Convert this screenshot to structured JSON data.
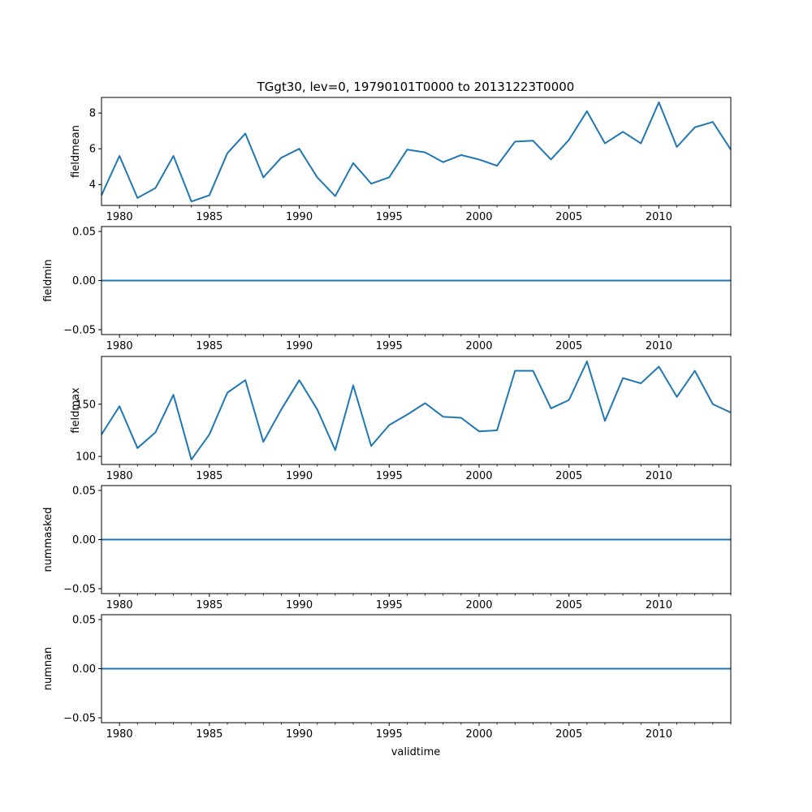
{
  "title": "TGgt30, lev=0, 19790101T0000 to 20131223T0000",
  "xlabel": "validtime",
  "colors": {
    "line": "#1f77b4",
    "axis": "#000000",
    "background": "#ffffff"
  },
  "chart_data": [
    {
      "type": "line",
      "ylabel": "fieldmean",
      "x": [
        1979,
        1980,
        1981,
        1982,
        1983,
        1984,
        1985,
        1986,
        1987,
        1988,
        1989,
        1990,
        1991,
        1992,
        1993,
        1994,
        1995,
        1996,
        1997,
        1998,
        1999,
        2000,
        2001,
        2002,
        2003,
        2004,
        2005,
        2006,
        2007,
        2008,
        2009,
        2010,
        2011,
        2012,
        2013,
        2014
      ],
      "values": [
        3.4,
        5.6,
        3.25,
        3.8,
        5.6,
        3.05,
        3.4,
        5.75,
        6.85,
        4.4,
        5.5,
        6.0,
        4.4,
        3.35,
        5.2,
        4.05,
        4.4,
        5.95,
        5.8,
        5.25,
        5.65,
        5.4,
        5.05,
        6.4,
        6.45,
        5.4,
        6.5,
        8.1,
        6.3,
        6.95,
        6.3,
        8.6,
        6.1,
        7.2,
        7.5,
        5.95
      ],
      "xlim": [
        1979,
        2014
      ],
      "ylim": [
        2.83,
        8.87
      ],
      "yticks": [
        4,
        6,
        8
      ],
      "ytick_labels": [
        "4",
        "6",
        "8"
      ]
    },
    {
      "type": "line",
      "ylabel": "fieldmin",
      "x": [
        1979,
        1980,
        1981,
        1982,
        1983,
        1984,
        1985,
        1986,
        1987,
        1988,
        1989,
        1990,
        1991,
        1992,
        1993,
        1994,
        1995,
        1996,
        1997,
        1998,
        1999,
        2000,
        2001,
        2002,
        2003,
        2004,
        2005,
        2006,
        2007,
        2008,
        2009,
        2010,
        2011,
        2012,
        2013,
        2014
      ],
      "values": [
        0,
        0,
        0,
        0,
        0,
        0,
        0,
        0,
        0,
        0,
        0,
        0,
        0,
        0,
        0,
        0,
        0,
        0,
        0,
        0,
        0,
        0,
        0,
        0,
        0,
        0,
        0,
        0,
        0,
        0,
        0,
        0,
        0,
        0,
        0,
        0
      ],
      "xlim": [
        1979,
        2014
      ],
      "ylim": [
        -0.055,
        0.055
      ],
      "yticks": [
        -0.05,
        0.0,
        0.05
      ],
      "ytick_labels": [
        "−0.05",
        "0.00",
        "0.05"
      ]
    },
    {
      "type": "line",
      "ylabel": "fieldmax",
      "x": [
        1979,
        1980,
        1981,
        1982,
        1983,
        1984,
        1985,
        1986,
        1987,
        1988,
        1989,
        1990,
        1991,
        1992,
        1993,
        1994,
        1995,
        1996,
        1997,
        1998,
        1999,
        2000,
        2001,
        2002,
        2003,
        2004,
        2005,
        2006,
        2007,
        2008,
        2009,
        2010,
        2011,
        2012,
        2013,
        2014
      ],
      "values": [
        121,
        148,
        108,
        123,
        159,
        97,
        121,
        161,
        173,
        114,
        145,
        173,
        145,
        106,
        168,
        110,
        130,
        140,
        151,
        138,
        137,
        124,
        125,
        182,
        182,
        146,
        154,
        191,
        134,
        175,
        170,
        186,
        157,
        182,
        150,
        142
      ],
      "xlim": [
        1979,
        2014
      ],
      "ylim": [
        92.3,
        195.7
      ],
      "yticks": [
        100,
        150
      ],
      "ytick_labels": [
        "100",
        "150"
      ]
    },
    {
      "type": "line",
      "ylabel": "nummasked",
      "x": [
        1979,
        1980,
        1981,
        1982,
        1983,
        1984,
        1985,
        1986,
        1987,
        1988,
        1989,
        1990,
        1991,
        1992,
        1993,
        1994,
        1995,
        1996,
        1997,
        1998,
        1999,
        2000,
        2001,
        2002,
        2003,
        2004,
        2005,
        2006,
        2007,
        2008,
        2009,
        2010,
        2011,
        2012,
        2013,
        2014
      ],
      "values": [
        0,
        0,
        0,
        0,
        0,
        0,
        0,
        0,
        0,
        0,
        0,
        0,
        0,
        0,
        0,
        0,
        0,
        0,
        0,
        0,
        0,
        0,
        0,
        0,
        0,
        0,
        0,
        0,
        0,
        0,
        0,
        0,
        0,
        0,
        0,
        0
      ],
      "xlim": [
        1979,
        2014
      ],
      "ylim": [
        -0.055,
        0.055
      ],
      "yticks": [
        -0.05,
        0.0,
        0.05
      ],
      "ytick_labels": [
        "−0.05",
        "0.00",
        "0.05"
      ]
    },
    {
      "type": "line",
      "ylabel": "numnan",
      "x": [
        1979,
        1980,
        1981,
        1982,
        1983,
        1984,
        1985,
        1986,
        1987,
        1988,
        1989,
        1990,
        1991,
        1992,
        1993,
        1994,
        1995,
        1996,
        1997,
        1998,
        1999,
        2000,
        2001,
        2002,
        2003,
        2004,
        2005,
        2006,
        2007,
        2008,
        2009,
        2010,
        2011,
        2012,
        2013,
        2014
      ],
      "values": [
        0,
        0,
        0,
        0,
        0,
        0,
        0,
        0,
        0,
        0,
        0,
        0,
        0,
        0,
        0,
        0,
        0,
        0,
        0,
        0,
        0,
        0,
        0,
        0,
        0,
        0,
        0,
        0,
        0,
        0,
        0,
        0,
        0,
        0,
        0,
        0
      ],
      "xlim": [
        1979,
        2014
      ],
      "ylim": [
        -0.055,
        0.055
      ],
      "yticks": [
        -0.05,
        0.0,
        0.05
      ],
      "ytick_labels": [
        "−0.05",
        "0.00",
        "0.05"
      ]
    }
  ],
  "xticks": [
    1980,
    1985,
    1990,
    1995,
    2000,
    2005,
    2010
  ],
  "xtick_labels": [
    "1980",
    "1985",
    "1990",
    "1995",
    "2000",
    "2005",
    "2010"
  ],
  "xminor_ticks": [
    1981,
    1982,
    1983,
    1984,
    1986,
    1987,
    1988,
    1989,
    1991,
    1992,
    1993,
    1994,
    1996,
    1997,
    1998,
    1999,
    2001,
    2002,
    2003,
    2004,
    2006,
    2007,
    2008,
    2009,
    2011,
    2012,
    2013,
    2014
  ]
}
